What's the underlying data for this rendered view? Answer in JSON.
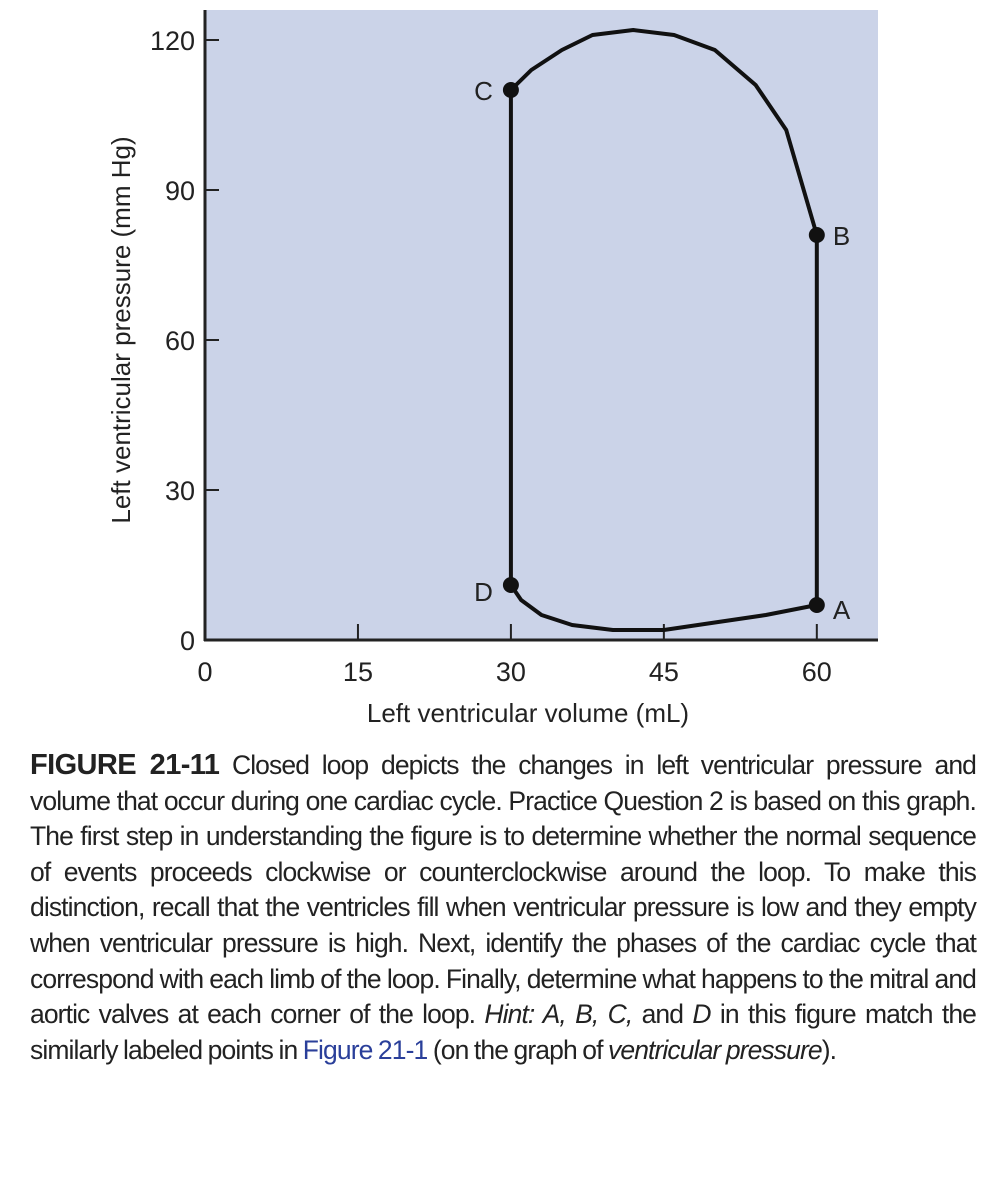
{
  "chart_data": {
    "type": "line",
    "xlabel": "Left ventricular volume (mL)",
    "ylabel": "Left ventricular pressure (mm Hg)",
    "xlim": [
      0,
      66
    ],
    "ylim": [
      0,
      126
    ],
    "xticks": [
      0,
      15,
      30,
      45,
      60
    ],
    "yticks": [
      0,
      30,
      60,
      90,
      120
    ],
    "grid": false,
    "background_color": "#cbd3e8",
    "line_color": "#111111",
    "points": [
      {
        "label": "A",
        "x": 60,
        "y": 7
      },
      {
        "label": "B",
        "x": 60,
        "y": 81
      },
      {
        "label": "C",
        "x": 30,
        "y": 110
      },
      {
        "label": "D",
        "x": 30,
        "y": 11
      }
    ],
    "series": [
      {
        "segment": "A-B",
        "x": [
          60,
          60
        ],
        "y": [
          7,
          81
        ]
      },
      {
        "segment": "B-C",
        "x": [
          60,
          57,
          54,
          50,
          46,
          42,
          38,
          35,
          32,
          30
        ],
        "y": [
          81,
          102,
          111,
          118,
          121,
          122,
          121,
          118,
          114,
          110
        ]
      },
      {
        "segment": "C-D",
        "x": [
          30,
          30
        ],
        "y": [
          110,
          11
        ]
      },
      {
        "segment": "D-A",
        "x": [
          30,
          31,
          33,
          36,
          40,
          45,
          50,
          55,
          60
        ],
        "y": [
          11,
          8,
          5,
          3,
          2,
          2,
          3.5,
          5,
          7
        ]
      }
    ]
  },
  "caption": {
    "figure_number": "FIGURE 21-11",
    "text1": " Closed loop depicts the changes in left ventricular pressure and volume that occur during one cardiac cycle. Practice Question 2 is based on this graph. The first step in understanding the figure is to determine whether the normal sequence of events proceeds clockwise or counterclockwise around the loop. To make this distinction, recall that the ventricles fill when ventricular pressure is low and they empty when ventricular pressure is high. Next, identify the phases of the cardiac cycle that correspond with each limb of the loop. Finally, determine what happens to the mitral and aortic valves at each corner of the loop. ",
    "hint_italic": "Hint: A, B, C,",
    "text2": " and ",
    "d_italic": "D",
    "text3": " in this figure match the similarly labeled points in ",
    "link": "Figure 21-1",
    "text4": " (on the graph of ",
    "vp_italic": "ventricular pressure",
    "text5": ").",
    "link_color": "#2a3f9a"
  }
}
